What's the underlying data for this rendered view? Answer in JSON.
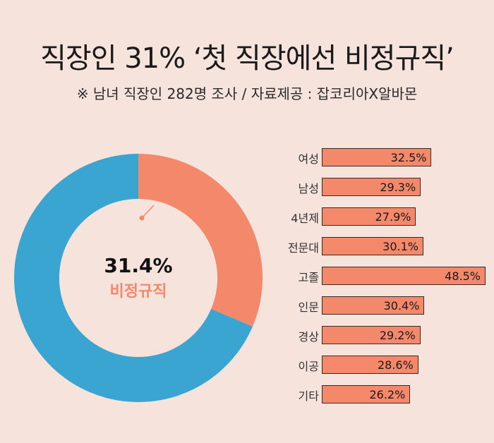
{
  "title": "직장인 31% ‘첫 직장에선  비정규직’",
  "subtitle": "※ 남녀 직장인 282명 조사 / 자료제공 : 잡코리아X알바몬",
  "colors": {
    "highlight": "#f4886a",
    "rest": "#3aa5d0",
    "background": "#f5e3dc"
  },
  "chart_data": [
    {
      "type": "pie",
      "labels": [
        "비정규직",
        ""
      ],
      "values": [
        31.4,
        68.6
      ],
      "center_value": "31.4%",
      "center_label": "비정규직"
    },
    {
      "type": "bar",
      "orientation": "horizontal",
      "categories": [
        "여성",
        "남성",
        "4년제",
        "전문대",
        "고졸",
        "인문",
        "경상",
        "이공",
        "기타"
      ],
      "values": [
        32.5,
        29.3,
        27.9,
        30.1,
        48.5,
        30.4,
        29.2,
        28.6,
        26.2
      ],
      "value_labels": [
        "32.5%",
        "29.3%",
        "27.9%",
        "30.1%",
        "48.5%",
        "30.4%",
        "29.2%",
        "28.6%",
        "26.2%"
      ],
      "xlim": [
        0,
        48.5
      ]
    }
  ]
}
